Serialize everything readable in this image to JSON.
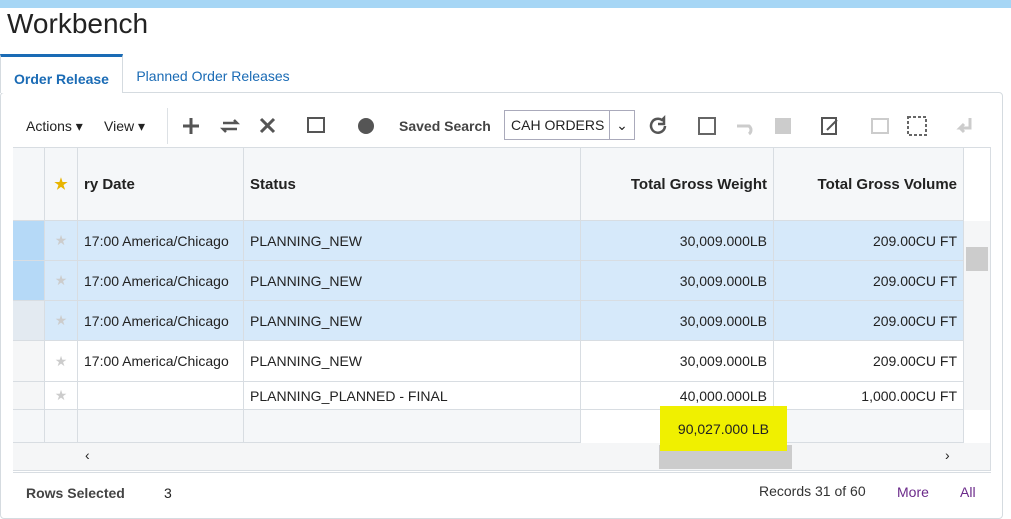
{
  "header": {
    "title": "Workbench"
  },
  "tabs": [
    {
      "label": "Order Release",
      "active": true
    },
    {
      "label": "Planned Order Releases",
      "active": false
    }
  ],
  "toolbar": {
    "actions": "Actions",
    "view": "View",
    "saved_search_label": "Saved Search",
    "saved_search_value": "CAH ORDERS"
  },
  "table": {
    "columns": {
      "date": "ry Date",
      "status": "Status",
      "weight": "Total Gross Weight",
      "volume": "Total Gross Volume"
    },
    "rows": [
      {
        "date": "17:00 America/Chicago",
        "status": "PLANNING_NEW",
        "weight": "30,009.000",
        "weight_unit": "LB",
        "volume": "209.00",
        "volume_unit": "CU FT",
        "selected": true
      },
      {
        "date": "17:00 America/Chicago",
        "status": "PLANNING_NEW",
        "weight": "30,009.000",
        "weight_unit": "LB",
        "volume": "209.00",
        "volume_unit": "CU FT",
        "selected": true
      },
      {
        "date": "17:00 America/Chicago",
        "status": "PLANNING_NEW",
        "weight": "30,009.000",
        "weight_unit": "LB",
        "volume": "209.00",
        "volume_unit": "CU FT",
        "selected": true
      },
      {
        "date": "17:00 America/Chicago",
        "status": "PLANNING_NEW",
        "weight": "30,009.000",
        "weight_unit": "LB",
        "volume": "209.00",
        "volume_unit": "CU FT",
        "selected": false
      },
      {
        "status": "PLANNING_PLANNED - FINAL",
        "weight": "40,000.000",
        "weight_unit": "LB",
        "volume": "1,000.00",
        "volume_unit": "CU FT",
        "selected": false
      }
    ],
    "total_weight": "90,027.000 LB"
  },
  "footer": {
    "rows_selected_label": "Rows Selected",
    "rows_selected": "3",
    "records": "Records 31 of 60",
    "more": "More",
    "all": "All"
  }
}
